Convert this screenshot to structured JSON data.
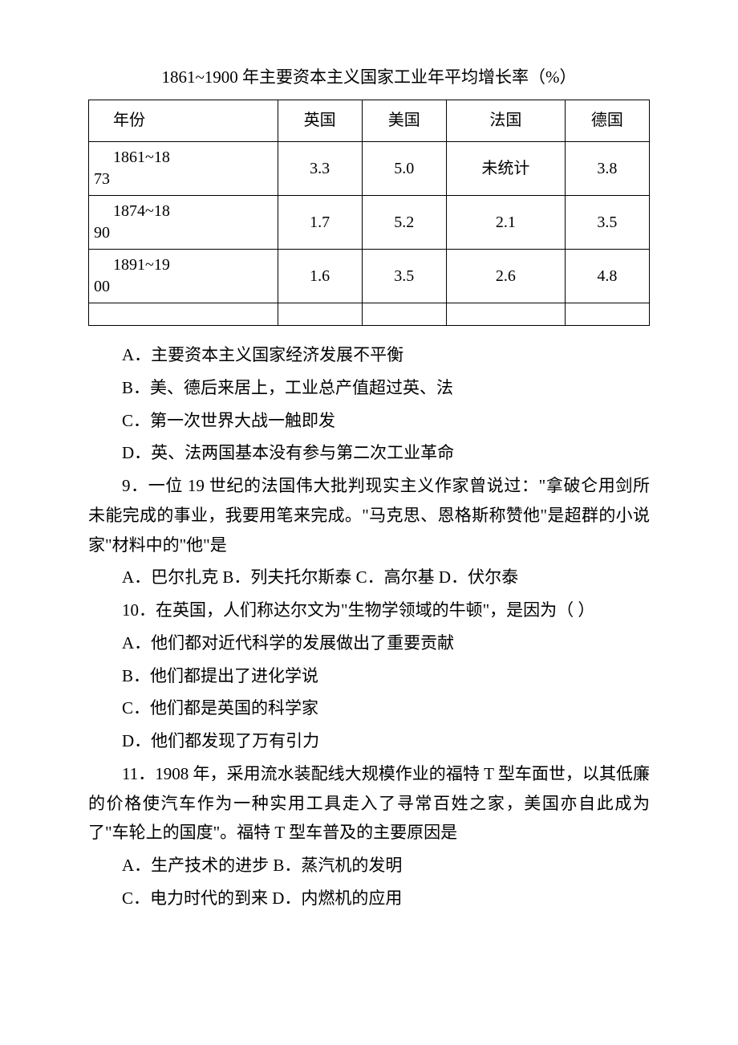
{
  "heading": "1861~1900 年主要资本主义国家工业年平均增长率（%）",
  "table": {
    "columns": [
      "年份",
      "英国",
      "美国",
      "法国",
      "德国"
    ],
    "rows": [
      {
        "yearTop": "1861~18",
        "yearBottom": "73",
        "cells": [
          "3.3",
          "5.0",
          "未统计",
          "3.8"
        ]
      },
      {
        "yearTop": "1874~18",
        "yearBottom": "90",
        "cells": [
          "1.7",
          "5.2",
          "2.1",
          "3.5"
        ]
      },
      {
        "yearTop": "1891~19",
        "yearBottom": "00",
        "cells": [
          "1.6",
          "3.5",
          "2.6",
          "4.8"
        ]
      }
    ]
  },
  "q8": {
    "a": "A．主要资本主义国家经济发展不平衡",
    "b": "B．美、德后来居上，工业总产值超过英、法",
    "c": "C．第一次世界大战一触即发",
    "d": "D．英、法两国基本没有参与第二次工业革命"
  },
  "q9": {
    "stem": "9．一位 19 世纪的法国伟大批判现实主义作家曾说过：\"拿破仑用剑所未能完成的事业，我要用笔来完成。\"马克思、恩格斯称赞他\"是超群的小说家\"材料中的\"他\"是",
    "opts": "A．巴尔扎克 B．列夫托尔斯泰 C．高尔基 D．伏尔泰"
  },
  "q10": {
    "stem": "10．在英国，人们称达尔文为\"生物学领域的牛顿\"，是因为（  ）",
    "a": "A．他们都对近代科学的发展做出了重要贡献",
    "b": "B．他们都提出了进化学说",
    "c": "C．他们都是英国的科学家",
    "d": "D．他们都发现了万有引力"
  },
  "q11": {
    "stem": "11．1908 年，采用流水装配线大规模作业的福特 T 型车面世，以其低廉的价格使汽车作为一种实用工具走入了寻常百姓之家，美国亦自此成为了\"车轮上的国度\"。福特 T 型车普及的主要原因是",
    "line1": "A．生产技术的进步 B．蒸汽机的发明",
    "line2": "C．电力时代的到来 D．内燃机的应用"
  },
  "watermark": ""
}
